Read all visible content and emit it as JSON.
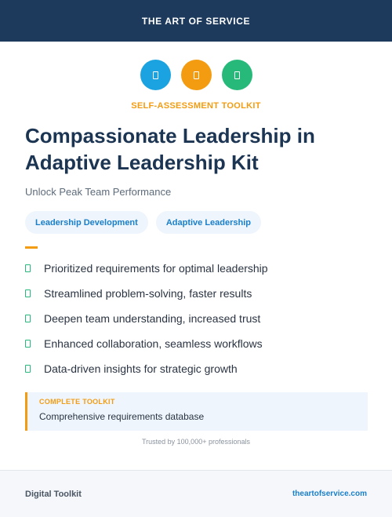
{
  "brand": "THE ART OF SERVICE",
  "icons": [
    {
      "name": "document-icon",
      "color": "#1aa3e0"
    },
    {
      "name": "document-icon",
      "color": "#f39c12"
    },
    {
      "name": "document-icon",
      "color": "#27b97a"
    }
  ],
  "eyebrow": "SELF-ASSESSMENT TOOLKIT",
  "title": "Compassionate Leadership in Adaptive Leadership Kit",
  "subtitle": "Unlock Peak Team Performance",
  "tags": [
    "Leadership Development",
    "Adaptive Leadership"
  ],
  "features": [
    "Prioritized requirements for optimal leadership",
    "Streamlined problem-solving, faster results",
    "Deepen team understanding, increased trust",
    "Enhanced collaboration, seamless workflows",
    "Data-driven insights for strategic growth"
  ],
  "callout": {
    "label": "COMPLETE TOOLKIT",
    "text": "Comprehensive requirements database"
  },
  "trusted": "Trusted by 100,000+ professionals",
  "footer": {
    "left": "Digital Toolkit",
    "right": "theartofservice.com"
  },
  "colors": {
    "navy": "#1d3a5c",
    "orange": "#f39c12",
    "blue": "#1a7fc9",
    "green": "#27b97a"
  }
}
